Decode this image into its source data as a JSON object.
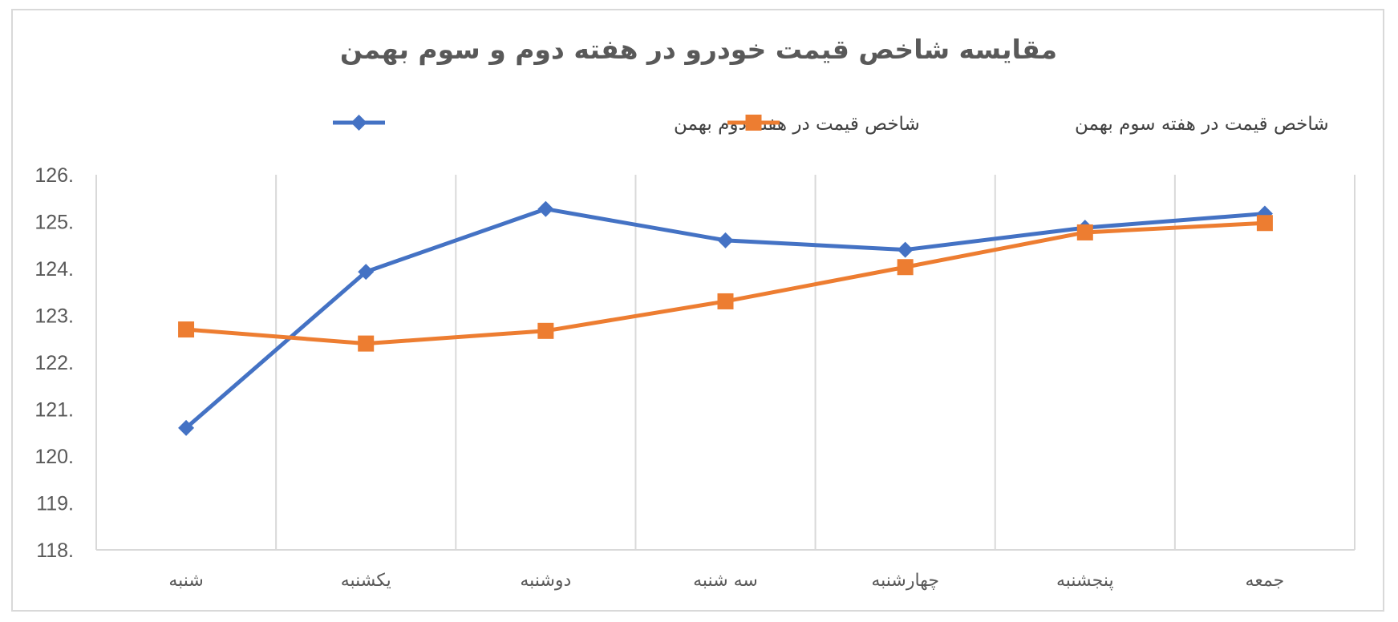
{
  "chart_data": {
    "type": "line",
    "title": "مقایسه شاخص قیمت خودرو در هفته دوم و سوم بهمن",
    "xlabel": "",
    "ylabel": "",
    "categories": [
      "شنبه",
      "یکشنبه",
      "دوشنبه",
      "سه شنبه",
      "چهارشنبه",
      "پنجشنبه",
      "جمعه"
    ],
    "ylim": [
      118,
      126
    ],
    "yticks": [
      118,
      119,
      120,
      121,
      122,
      123,
      124,
      125,
      126
    ],
    "ytick_labels": [
      "118.",
      "119.",
      "120.",
      "121.",
      "122.",
      "123.",
      "124.",
      "125.",
      "126."
    ],
    "grid": "vertical",
    "legend_position": "top",
    "series": [
      {
        "name": "شاخص قیمت در هفته دوم بهمن",
        "color": "#4472C4",
        "marker": "diamond",
        "values": [
          120.6,
          123.93,
          125.27,
          124.6,
          124.4,
          124.87,
          125.17
        ]
      },
      {
        "name": "شاخص قیمت در هفته سوم بهمن",
        "color": "#ED7D31",
        "marker": "square",
        "values": [
          122.7,
          122.4,
          122.67,
          123.3,
          124.03,
          124.77,
          124.97
        ]
      }
    ]
  }
}
